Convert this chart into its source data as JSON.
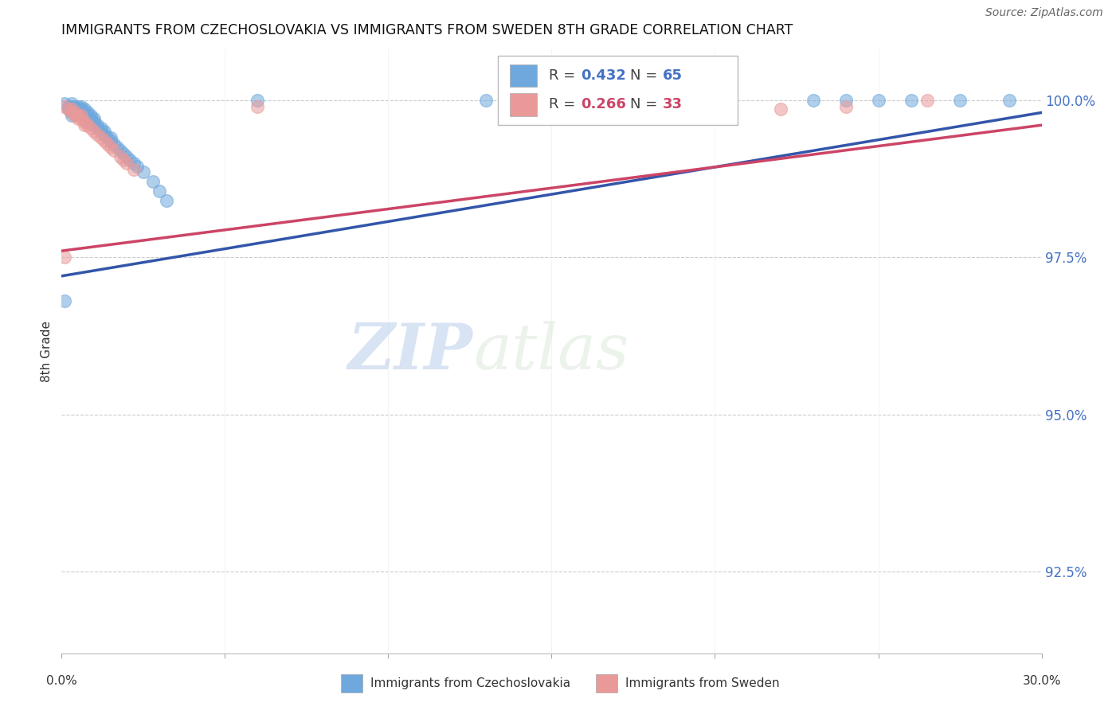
{
  "title": "IMMIGRANTS FROM CZECHOSLOVAKIA VS IMMIGRANTS FROM SWEDEN 8TH GRADE CORRELATION CHART",
  "source": "Source: ZipAtlas.com",
  "ylabel": "8th Grade",
  "ytick_labels": [
    "92.5%",
    "95.0%",
    "97.5%",
    "100.0%"
  ],
  "ytick_values": [
    0.925,
    0.95,
    0.975,
    1.0
  ],
  "xlim": [
    0.0,
    0.3
  ],
  "ylim": [
    0.912,
    1.008
  ],
  "legend_blue_label": "Immigrants from Czechoslovakia",
  "legend_pink_label": "Immigrants from Sweden",
  "R_blue": 0.432,
  "N_blue": 65,
  "R_pink": 0.266,
  "N_pink": 33,
  "blue_color": "#6fa8dc",
  "pink_color": "#ea9999",
  "blue_line_color": "#3355aa",
  "pink_line_color": "#cc4466",
  "watermark_zip": "ZIP",
  "watermark_atlas": "atlas",
  "blue_x": [
    0.001,
    0.002,
    0.002,
    0.003,
    0.003,
    0.003,
    0.003,
    0.003,
    0.004,
    0.004,
    0.004,
    0.005,
    0.005,
    0.005,
    0.005,
    0.006,
    0.006,
    0.006,
    0.006,
    0.007,
    0.007,
    0.007,
    0.007,
    0.008,
    0.008,
    0.008,
    0.008,
    0.009,
    0.009,
    0.009,
    0.01,
    0.01,
    0.01,
    0.011,
    0.011,
    0.012,
    0.012,
    0.013,
    0.013,
    0.014,
    0.015,
    0.015,
    0.016,
    0.017,
    0.018,
    0.019,
    0.02,
    0.021,
    0.022,
    0.023,
    0.025,
    0.028,
    0.03,
    0.032,
    0.001,
    0.06,
    0.13,
    0.175,
    0.2,
    0.23,
    0.24,
    0.25,
    0.26,
    0.275,
    0.29
  ],
  "blue_y": [
    0.9995,
    0.999,
    0.9985,
    0.9995,
    0.999,
    0.9985,
    0.998,
    0.9975,
    0.999,
    0.9985,
    0.998,
    0.999,
    0.9985,
    0.998,
    0.9975,
    0.999,
    0.9985,
    0.998,
    0.9975,
    0.9985,
    0.998,
    0.9975,
    0.997,
    0.998,
    0.9975,
    0.997,
    0.9965,
    0.9975,
    0.997,
    0.9965,
    0.997,
    0.9965,
    0.996,
    0.996,
    0.9955,
    0.9955,
    0.995,
    0.995,
    0.9945,
    0.994,
    0.994,
    0.9935,
    0.993,
    0.9925,
    0.992,
    0.9915,
    0.991,
    0.9905,
    0.99,
    0.9895,
    0.9885,
    0.987,
    0.9855,
    0.984,
    0.968,
    1.0,
    1.0,
    1.0,
    1.0,
    1.0,
    1.0,
    1.0,
    1.0,
    1.0,
    1.0
  ],
  "pink_x": [
    0.001,
    0.002,
    0.003,
    0.003,
    0.004,
    0.004,
    0.005,
    0.005,
    0.006,
    0.006,
    0.007,
    0.007,
    0.008,
    0.009,
    0.01,
    0.011,
    0.012,
    0.013,
    0.014,
    0.015,
    0.016,
    0.018,
    0.019,
    0.02,
    0.022,
    0.001,
    0.06,
    0.15,
    0.17,
    0.19,
    0.22,
    0.24,
    0.265
  ],
  "pink_y": [
    0.999,
    0.9985,
    0.9985,
    0.998,
    0.998,
    0.9975,
    0.9975,
    0.997,
    0.9975,
    0.997,
    0.9965,
    0.996,
    0.996,
    0.9955,
    0.995,
    0.9945,
    0.994,
    0.9935,
    0.993,
    0.9925,
    0.992,
    0.991,
    0.9905,
    0.99,
    0.989,
    0.975,
    0.999,
    0.999,
    0.9985,
    0.9985,
    0.9985,
    0.999,
    1.0
  ],
  "blue_trendline_x": [
    0.0,
    0.3
  ],
  "blue_trendline_y": [
    0.972,
    0.998
  ],
  "pink_trendline_x": [
    0.0,
    0.3
  ],
  "pink_trendline_y": [
    0.976,
    0.996
  ]
}
